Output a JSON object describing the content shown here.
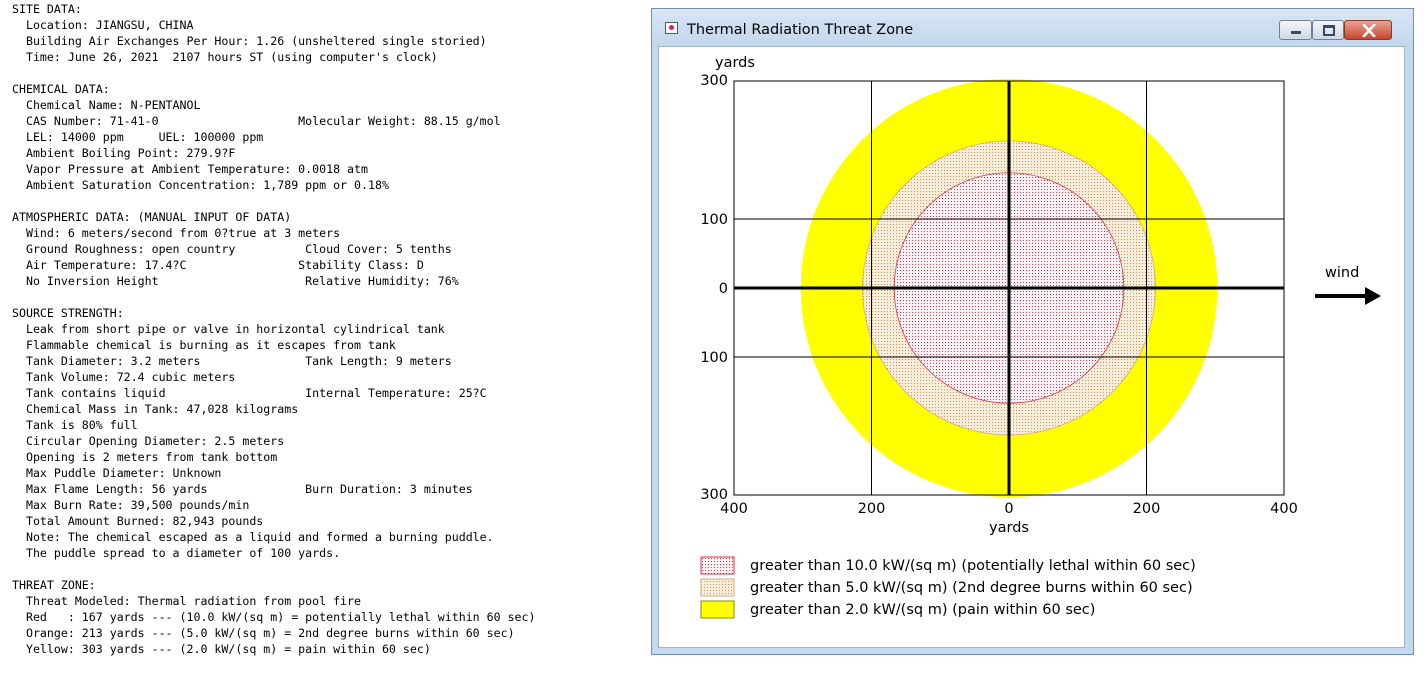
{
  "report": {
    "lines": [
      "SITE DATA:",
      "  Location: JIANGSU, CHINA",
      "  Building Air Exchanges Per Hour: 1.26 (unsheltered single storied)",
      "  Time: June 26, 2021  2107 hours ST (using computer's clock)",
      "",
      "CHEMICAL DATA:",
      "  Chemical Name: N-PENTANOL",
      "  CAS Number: 71-41-0                    Molecular Weight: 88.15 g/mol",
      "  LEL: 14000 ppm     UEL: 100000 ppm",
      "  Ambient Boiling Point: 279.9?F",
      "  Vapor Pressure at Ambient Temperature: 0.0018 atm",
      "  Ambient Saturation Concentration: 1,789 ppm or 0.18%",
      "",
      "ATMOSPHERIC DATA: (MANUAL INPUT OF DATA)",
      "  Wind: 6 meters/second from 0?true at 3 meters",
      "  Ground Roughness: open country          Cloud Cover: 5 tenths",
      "  Air Temperature: 17.4?C                Stability Class: D",
      "  No Inversion Height                     Relative Humidity: 76%",
      "",
      "SOURCE STRENGTH:",
      "  Leak from short pipe or valve in horizontal cylindrical tank",
      "  Flammable chemical is burning as it escapes from tank",
      "  Tank Diameter: 3.2 meters               Tank Length: 9 meters",
      "  Tank Volume: 72.4 cubic meters",
      "  Tank contains liquid                    Internal Temperature: 25?C",
      "  Chemical Mass in Tank: 47,028 kilograms",
      "  Tank is 80% full",
      "  Circular Opening Diameter: 2.5 meters",
      "  Opening is 2 meters from tank bottom",
      "  Max Puddle Diameter: Unknown",
      "  Max Flame Length: 56 yards              Burn Duration: 3 minutes",
      "  Max Burn Rate: 39,500 pounds/min",
      "  Total Amount Burned: 82,943 pounds",
      "  Note: The chemical escaped as a liquid and formed a burning puddle.",
      "  The puddle spread to a diameter of 100 yards.",
      "",
      "THREAT ZONE:",
      "  Threat Modeled: Thermal radiation from pool fire",
      "  Red   : 167 yards --- (10.0 kW/(sq m) = potentially lethal within 60 sec)",
      "  Orange: 213 yards --- (5.0 kW/(sq m) = 2nd degree burns within 60 sec)",
      "  Yellow: 303 yards --- (2.0 kW/(sq m) = pain within 60 sec)"
    ]
  },
  "window": {
    "title": "Thermal Radiation Threat Zone",
    "icons": [
      "app-icon",
      "minimize-icon",
      "maximize-icon",
      "close-icon"
    ]
  },
  "chart_data": {
    "type": "threat-zone-map",
    "x_unit_label": "yards",
    "y_unit_label": "yards",
    "xlim": [
      -400,
      400
    ],
    "ylim": [
      -300,
      300
    ],
    "x_ticks": [
      400,
      200,
      0,
      200,
      400
    ],
    "y_ticks": [
      300,
      100,
      0,
      100,
      300
    ],
    "grid": true,
    "wind_label": "wind",
    "wind_direction": "east",
    "zones": [
      {
        "name": "Yellow",
        "radius_yards": 303,
        "center_x_yards": 0,
        "fill": "#ffff00",
        "pattern": "solid",
        "legend": "greater than 2.0 kW/(sq m) (pain within 60 sec)"
      },
      {
        "name": "Orange",
        "radius_yards": 213,
        "center_x_yards": 0,
        "fill": "#f0e6c8",
        "pattern": "dots-orange",
        "legend": "greater than 5.0 kW/(sq m) (2nd degree burns within 60 sec)"
      },
      {
        "name": "Red",
        "radius_yards": 167,
        "center_x_yards": 0,
        "fill": "#fcecef",
        "pattern": "dots-red",
        "legend": "greater than 10.0 kW/(sq m) (potentially lethal within 60 sec)"
      }
    ],
    "legend_order": [
      "Red",
      "Orange",
      "Yellow"
    ]
  }
}
